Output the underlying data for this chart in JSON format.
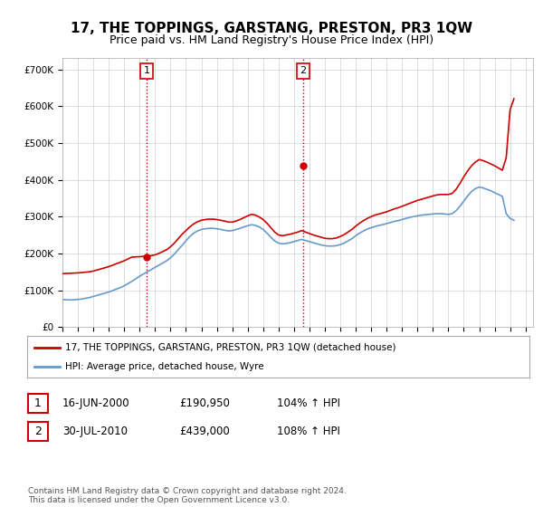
{
  "title": "17, THE TOPPINGS, GARSTANG, PRESTON, PR3 1QW",
  "subtitle": "Price paid vs. HM Land Registry's House Price Index (HPI)",
  "ylim": [
    0,
    730000
  ],
  "yticks": [
    0,
    100000,
    200000,
    300000,
    400000,
    500000,
    600000,
    700000
  ],
  "ytick_labels": [
    "£0",
    "£100K",
    "£200K",
    "£300K",
    "£400K",
    "£500K",
    "£600K",
    "£700K"
  ],
  "xlim_start": 1995.0,
  "xlim_end": 2025.5,
  "xticks": [
    1995,
    1996,
    1997,
    1998,
    1999,
    2000,
    2001,
    2002,
    2003,
    2004,
    2005,
    2006,
    2007,
    2008,
    2009,
    2010,
    2011,
    2012,
    2013,
    2014,
    2015,
    2016,
    2017,
    2018,
    2019,
    2020,
    2021,
    2022,
    2023,
    2024,
    2025
  ],
  "grid_color": "#d0d0d0",
  "background_color": "#ffffff",
  "plot_bg_color": "#ffffff",
  "red_line_color": "#cc0000",
  "blue_line_color": "#6699cc",
  "vline_color": "#cc0000",
  "vline_style": ":",
  "transaction1_x": 2000.46,
  "transaction1_y": 190950,
  "transaction1_label": "1",
  "transaction2_x": 2010.58,
  "transaction2_y": 439000,
  "transaction2_label": "2",
  "legend_line1": "17, THE TOPPINGS, GARSTANG, PRESTON, PR3 1QW (detached house)",
  "legend_line2": "HPI: Average price, detached house, Wyre",
  "table_row1": [
    "1",
    "16-JUN-2000",
    "£190,950",
    "104% ↑ HPI"
  ],
  "table_row2": [
    "2",
    "30-JUL-2010",
    "£439,000",
    "108% ↑ HPI"
  ],
  "footer": "Contains HM Land Registry data © Crown copyright and database right 2024.\nThis data is licensed under the Open Government Licence v3.0.",
  "title_fontsize": 11,
  "subtitle_fontsize": 9,
  "tick_fontsize": 7.5,
  "hpi_data_x": [
    1995.0,
    1995.25,
    1995.5,
    1995.75,
    1996.0,
    1996.25,
    1996.5,
    1996.75,
    1997.0,
    1997.25,
    1997.5,
    1997.75,
    1998.0,
    1998.25,
    1998.5,
    1998.75,
    1999.0,
    1999.25,
    1999.5,
    1999.75,
    2000.0,
    2000.25,
    2000.5,
    2000.75,
    2001.0,
    2001.25,
    2001.5,
    2001.75,
    2002.0,
    2002.25,
    2002.5,
    2002.75,
    2003.0,
    2003.25,
    2003.5,
    2003.75,
    2004.0,
    2004.25,
    2004.5,
    2004.75,
    2005.0,
    2005.25,
    2005.5,
    2005.75,
    2006.0,
    2006.25,
    2006.5,
    2006.75,
    2007.0,
    2007.25,
    2007.5,
    2007.75,
    2008.0,
    2008.25,
    2008.5,
    2008.75,
    2009.0,
    2009.25,
    2009.5,
    2009.75,
    2010.0,
    2010.25,
    2010.5,
    2010.75,
    2011.0,
    2011.25,
    2011.5,
    2011.75,
    2012.0,
    2012.25,
    2012.5,
    2012.75,
    2013.0,
    2013.25,
    2013.5,
    2013.75,
    2014.0,
    2014.25,
    2014.5,
    2014.75,
    2015.0,
    2015.25,
    2015.5,
    2015.75,
    2016.0,
    2016.25,
    2016.5,
    2016.75,
    2017.0,
    2017.25,
    2017.5,
    2017.75,
    2018.0,
    2018.25,
    2018.5,
    2018.75,
    2019.0,
    2019.25,
    2019.5,
    2019.75,
    2020.0,
    2020.25,
    2020.5,
    2020.75,
    2021.0,
    2021.25,
    2021.5,
    2021.75,
    2022.0,
    2022.25,
    2022.5,
    2022.75,
    2023.0,
    2023.25,
    2023.5,
    2023.75,
    2024.0,
    2024.25
  ],
  "hpi_data_y": [
    75000,
    74000,
    73500,
    74000,
    75000,
    76000,
    78000,
    80000,
    83000,
    86000,
    89000,
    92000,
    95000,
    99000,
    103000,
    107000,
    112000,
    118000,
    124000,
    131000,
    138000,
    144000,
    150000,
    156000,
    162000,
    168000,
    174000,
    180000,
    188000,
    198000,
    210000,
    222000,
    234000,
    246000,
    255000,
    261000,
    265000,
    267000,
    268000,
    268000,
    267000,
    265000,
    263000,
    261000,
    262000,
    265000,
    268000,
    272000,
    275000,
    278000,
    276000,
    272000,
    265000,
    255000,
    244000,
    234000,
    228000,
    226000,
    227000,
    229000,
    232000,
    235000,
    238000,
    235000,
    232000,
    229000,
    226000,
    223000,
    221000,
    220000,
    220000,
    221000,
    224000,
    228000,
    234000,
    240000,
    248000,
    255000,
    261000,
    266000,
    270000,
    273000,
    276000,
    278000,
    281000,
    284000,
    287000,
    289000,
    292000,
    295000,
    298000,
    300000,
    302000,
    304000,
    305000,
    306000,
    307000,
    308000,
    308000,
    307000,
    306000,
    308000,
    316000,
    328000,
    342000,
    356000,
    368000,
    376000,
    380000,
    378000,
    374000,
    370000,
    365000,
    360000,
    355000,
    308000,
    295000,
    290000
  ],
  "price_data_x": [
    1995.0,
    1995.25,
    1995.5,
    1995.75,
    1996.0,
    1996.25,
    1996.5,
    1996.75,
    1997.0,
    1997.25,
    1997.5,
    1997.75,
    1998.0,
    1998.25,
    1998.5,
    1998.75,
    1999.0,
    1999.25,
    1999.5,
    1999.75,
    2000.0,
    2000.25,
    2000.5,
    2000.75,
    2001.0,
    2001.25,
    2001.5,
    2001.75,
    2002.0,
    2002.25,
    2002.5,
    2002.75,
    2003.0,
    2003.25,
    2003.5,
    2003.75,
    2004.0,
    2004.25,
    2004.5,
    2004.75,
    2005.0,
    2005.25,
    2005.5,
    2005.75,
    2006.0,
    2006.25,
    2006.5,
    2006.75,
    2007.0,
    2007.25,
    2007.5,
    2007.75,
    2008.0,
    2008.25,
    2008.5,
    2008.75,
    2009.0,
    2009.25,
    2009.5,
    2009.75,
    2010.0,
    2010.25,
    2010.5,
    2010.75,
    2011.0,
    2011.25,
    2011.5,
    2011.75,
    2012.0,
    2012.25,
    2012.5,
    2012.75,
    2013.0,
    2013.25,
    2013.5,
    2013.75,
    2014.0,
    2014.25,
    2014.5,
    2014.75,
    2015.0,
    2015.25,
    2015.5,
    2015.75,
    2016.0,
    2016.25,
    2016.5,
    2016.75,
    2017.0,
    2017.25,
    2017.5,
    2017.75,
    2018.0,
    2018.25,
    2018.5,
    2018.75,
    2019.0,
    2019.25,
    2019.5,
    2019.75,
    2020.0,
    2020.25,
    2020.5,
    2020.75,
    2021.0,
    2021.25,
    2021.5,
    2021.75,
    2022.0,
    2022.25,
    2022.5,
    2022.75,
    2023.0,
    2023.25,
    2023.5,
    2023.75,
    2024.0,
    2024.25
  ],
  "price_data_y": [
    145000,
    145500,
    146000,
    146500,
    147000,
    148000,
    149000,
    150000,
    152000,
    155000,
    158000,
    161000,
    164000,
    168000,
    172000,
    176000,
    180000,
    185000,
    190000,
    190500,
    191000,
    192000,
    193000,
    194000,
    196000,
    200000,
    205000,
    210000,
    218000,
    228000,
    240000,
    252000,
    262000,
    272000,
    280000,
    286000,
    290000,
    292000,
    293000,
    293000,
    292000,
    290000,
    288000,
    285000,
    285000,
    288000,
    292000,
    297000,
    302000,
    306000,
    304000,
    299000,
    292000,
    282000,
    270000,
    258000,
    250000,
    248000,
    250000,
    252000,
    255000,
    258000,
    262000,
    258000,
    254000,
    250000,
    247000,
    244000,
    241000,
    240000,
    240000,
    242000,
    246000,
    251000,
    258000,
    265000,
    274000,
    282000,
    289000,
    295000,
    300000,
    304000,
    307000,
    310000,
    313000,
    317000,
    321000,
    324000,
    328000,
    332000,
    336000,
    340000,
    344000,
    347000,
    350000,
    353000,
    356000,
    359000,
    360000,
    360000,
    360000,
    363000,
    374000,
    390000,
    408000,
    424000,
    438000,
    448000,
    455000,
    452000,
    448000,
    443000,
    438000,
    432000,
    426000,
    460000,
    590000,
    620000
  ]
}
